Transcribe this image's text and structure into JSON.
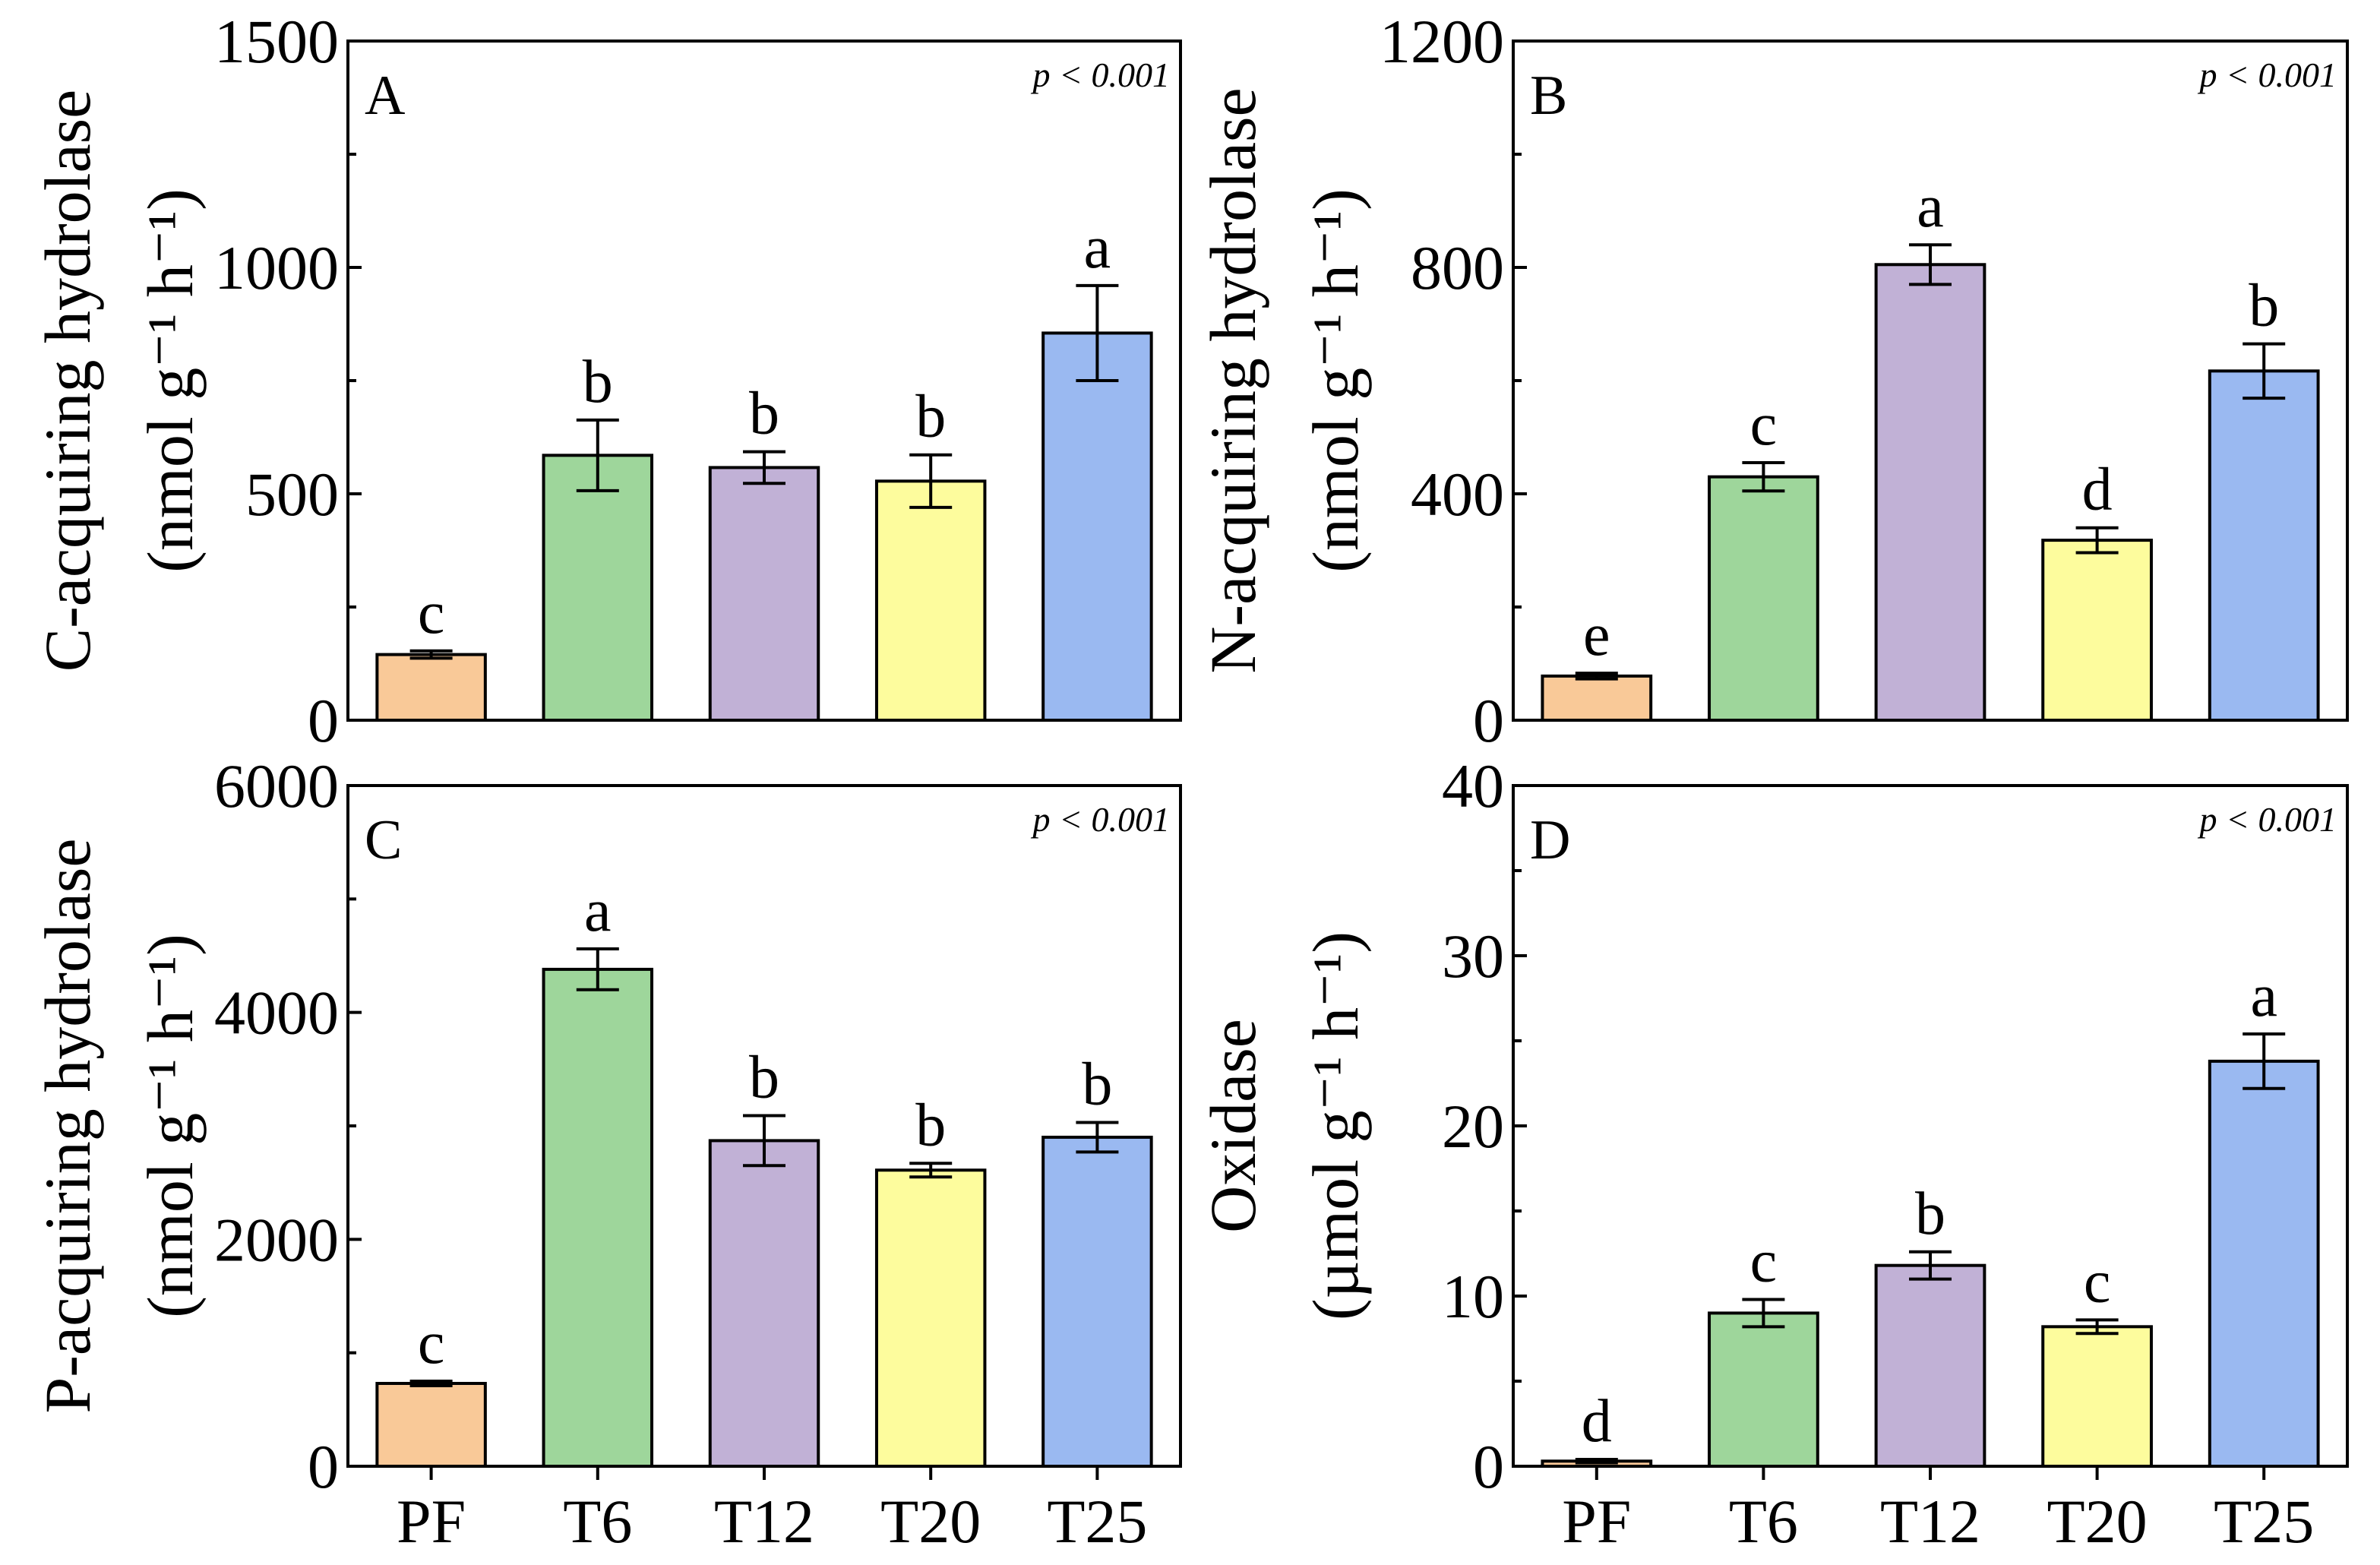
{
  "chart_data": [
    {
      "type": "bar",
      "panel_label": "A",
      "ylabel_line1": "C-acquiring hydrolase",
      "ylabel_line2": "(nmol g⁻¹ h⁻¹)",
      "p_text": "p < 0.001",
      "ylim": [
        0,
        1500
      ],
      "yticks": [
        0,
        500,
        1000,
        1500
      ],
      "categories": [
        "PF",
        "T6",
        "T12",
        "T20",
        "T25"
      ],
      "values": [
        145,
        585,
        558,
        528,
        855
      ],
      "errors": [
        8,
        78,
        35,
        58,
        105
      ],
      "letters": [
        "c",
        "b",
        "b",
        "b",
        "a"
      ]
    },
    {
      "type": "bar",
      "panel_label": "B",
      "ylabel_line1": "N-acquiring hydrolase",
      "ylabel_line2": "(nmol g⁻¹ h⁻¹)",
      "p_text": "p < 0.001",
      "ylim": [
        0,
        1200
      ],
      "yticks": [
        0,
        400,
        800,
        1200
      ],
      "categories": [
        "PF",
        "T6",
        "T12",
        "T20",
        "T25"
      ],
      "values": [
        78,
        430,
        805,
        318,
        617
      ],
      "errors": [
        5,
        25,
        35,
        22,
        48
      ],
      "letters": [
        "e",
        "c",
        "a",
        "d",
        "b"
      ]
    },
    {
      "type": "bar",
      "panel_label": "C",
      "ylabel_line1": "P-acquiring hydrolase",
      "ylabel_line2": "(nmol g⁻¹ h⁻¹)",
      "p_text": "p < 0.001",
      "ylim": [
        0,
        6000
      ],
      "yticks": [
        0,
        2000,
        4000,
        6000
      ],
      "categories": [
        "PF",
        "T6",
        "T12",
        "T20",
        "T25"
      ],
      "values": [
        730,
        4380,
        2870,
        2610,
        2900
      ],
      "errors": [
        20,
        180,
        220,
        60,
        130
      ],
      "letters": [
        "c",
        "a",
        "b",
        "b",
        "b"
      ]
    },
    {
      "type": "bar",
      "panel_label": "D",
      "ylabel_line1": "Oxidase",
      "ylabel_line2": "(µmol g⁻¹ h⁻¹)",
      "p_text": "p < 0.001",
      "ylim": [
        0,
        40
      ],
      "yticks": [
        0,
        10,
        20,
        30,
        40
      ],
      "categories": [
        "PF",
        "T6",
        "T12",
        "T20",
        "T25"
      ],
      "values": [
        0.3,
        9.0,
        11.8,
        8.2,
        23.8
      ],
      "errors": [
        0.1,
        0.8,
        0.8,
        0.4,
        1.6
      ],
      "letters": [
        "d",
        "c",
        "b",
        "c",
        "a"
      ]
    }
  ],
  "colors": [
    "#f9c998",
    "#9ed69b",
    "#c1b1d6",
    "#fdfc9d",
    "#9ab9f1"
  ]
}
